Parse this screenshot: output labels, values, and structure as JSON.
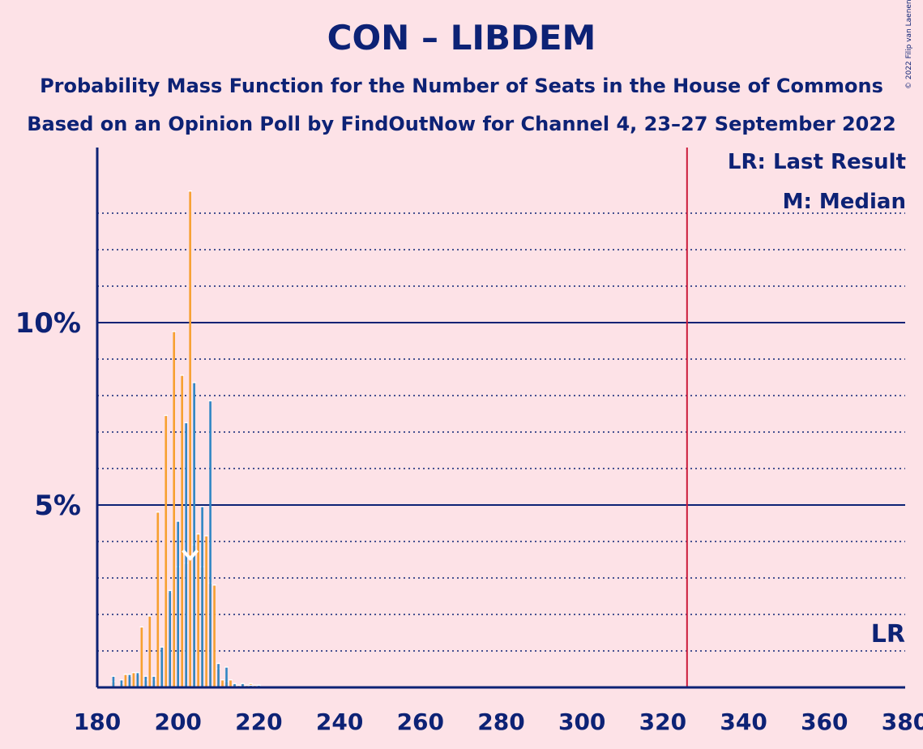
{
  "header": {
    "title": "CON – LIBDEM",
    "subtitle1": "Probability Mass Function for the Number of Seats in the House of Commons",
    "subtitle2": "Based on an Opinion Poll by FindOutNow for Channel 4, 23–27 September 2022",
    "copyright": "© 2022 Filip van Laenen"
  },
  "colors": {
    "background": "#fde2e7",
    "text": "#0d2275",
    "bar_orange": "#f7a030",
    "bar_blue": "#2f86c4",
    "last_result_line": "#cc1a3a",
    "median_line": "#ffffff"
  },
  "chart_data": {
    "type": "bar",
    "title": "CON – LIBDEM",
    "xlim": [
      180,
      380
    ],
    "ylim": [
      0,
      14.8
    ],
    "x_ticks": [
      180,
      200,
      220,
      240,
      260,
      280,
      300,
      320,
      340,
      360,
      380
    ],
    "x_tick_labels": [
      "180",
      "200",
      "220",
      "240",
      "260",
      "280",
      "300",
      "320",
      "340",
      "360",
      "380"
    ],
    "y_major_ticks": [
      5,
      10
    ],
    "y_tick_labels": [
      "5%",
      "10%"
    ],
    "y_minor_gridlines": [
      1,
      2,
      3,
      4,
      6,
      7,
      8,
      9,
      11,
      12,
      13
    ],
    "grid": true,
    "series": [
      {
        "color": "orange",
        "x": [
          184,
          186,
          187,
          188,
          189,
          190,
          191,
          192,
          193,
          194,
          195,
          196,
          197,
          198,
          199,
          200,
          201,
          202,
          203,
          204,
          205,
          206,
          207,
          208,
          209,
          210,
          211,
          212,
          213,
          214,
          215,
          216,
          217,
          218,
          219,
          220
        ],
        "values": [
          0.15,
          0.1,
          0.35,
          0.3,
          0.4,
          0.35,
          1.65,
          0.2,
          1.95,
          0.2,
          4.8,
          1.1,
          7.45,
          2.6,
          9.75,
          3.3,
          8.55,
          3.4,
          13.6,
          3.9,
          4.2,
          3.3,
          4.15,
          2.85,
          2.8,
          0.5,
          0.2,
          0.15,
          0.2,
          0.08,
          0.05,
          0.1,
          0.05,
          0.1,
          0.05,
          0.05
        ]
      },
      {
        "color": "blue",
        "x": [
          184,
          186,
          188,
          190,
          192,
          194,
          196,
          198,
          200,
          202,
          204,
          206,
          208,
          210,
          212,
          214,
          216,
          218,
          220
        ],
        "values": [
          0.3,
          0.2,
          0.35,
          0.4,
          0.3,
          0.3,
          1.1,
          2.65,
          4.55,
          7.25,
          8.35,
          4.95,
          7.85,
          0.65,
          0.55,
          0.1,
          0.1,
          0.05,
          0.05
        ]
      }
    ],
    "median": 203,
    "last_result": 326,
    "legend": {
      "placement": "top-right",
      "last_result_label": "LR: Last Result",
      "median_label": "M: Median"
    },
    "annotations": [
      {
        "text": "LR",
        "x": 326
      }
    ]
  }
}
